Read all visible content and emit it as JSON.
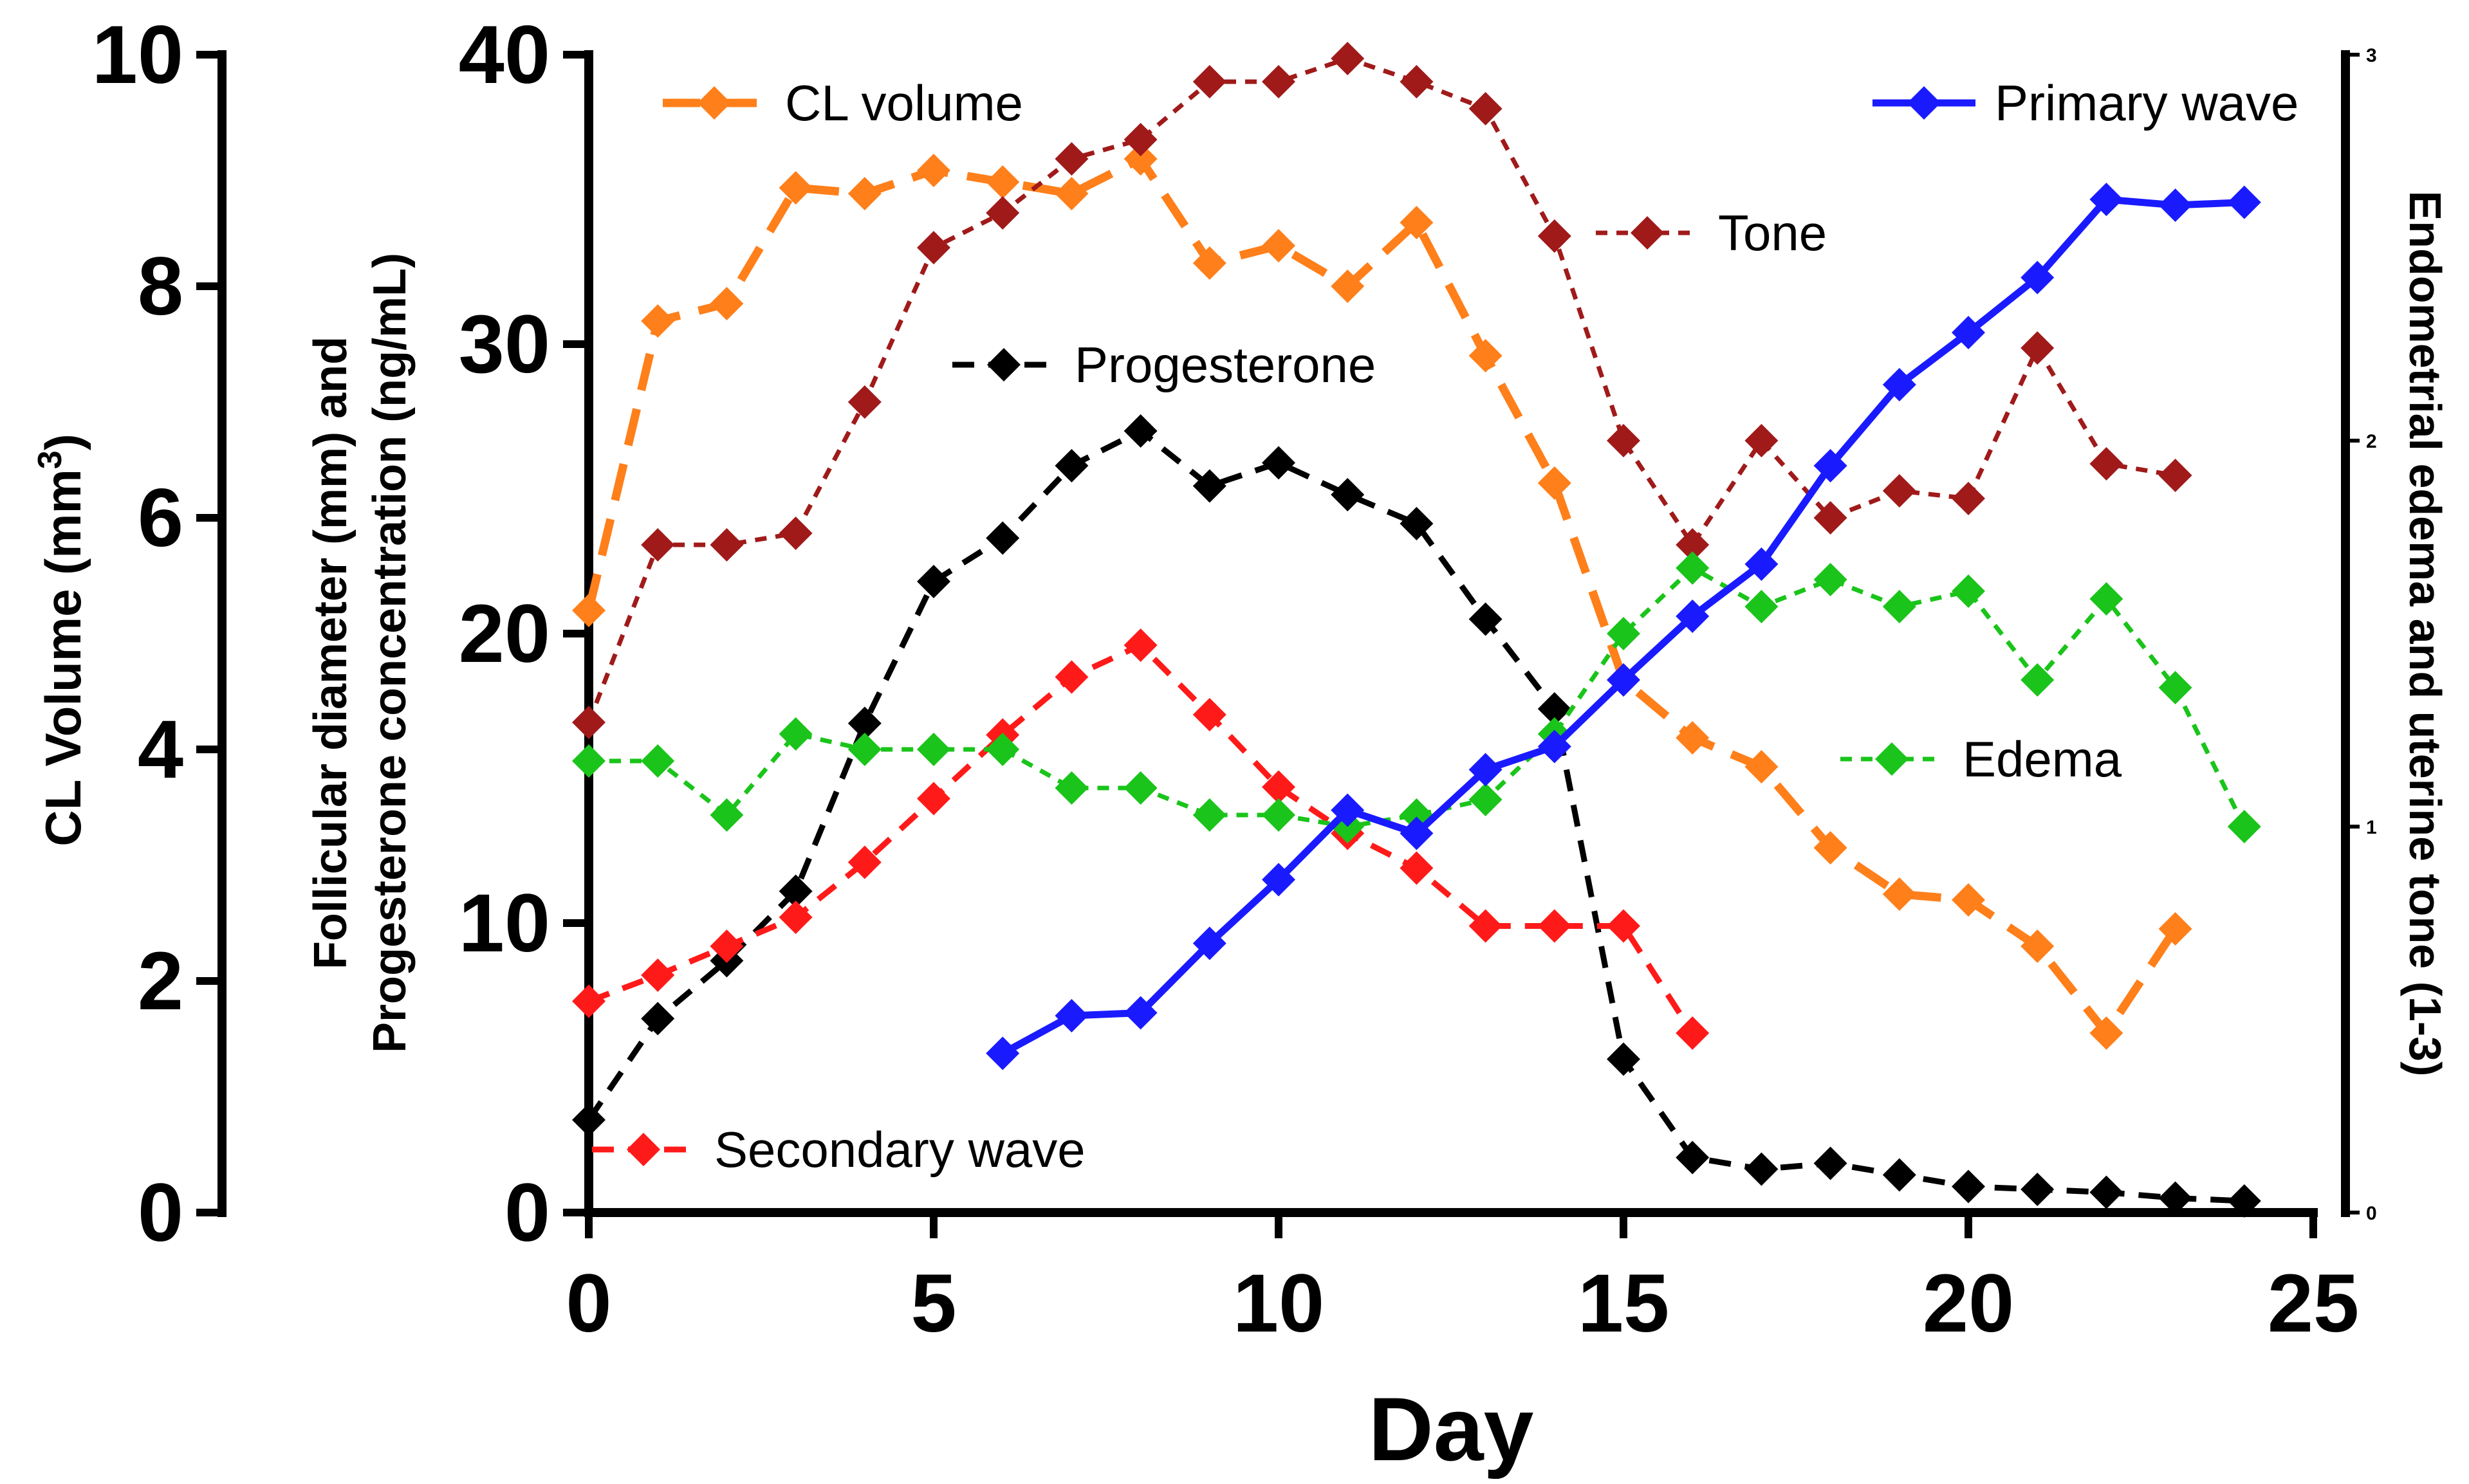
{
  "chart_data": {
    "type": "line",
    "x": [
      0,
      1,
      2,
      3,
      4,
      5,
      6,
      7,
      8,
      9,
      10,
      11,
      12,
      13,
      14,
      15,
      16,
      17,
      18,
      19,
      20,
      21,
      22,
      23,
      24
    ],
    "xlabel": "Day",
    "xlim": [
      0,
      25
    ],
    "xticks": [
      0,
      5,
      10,
      15,
      20,
      25
    ],
    "left_outer_axis": {
      "label_main": "CL Volume (mm",
      "label_sup": "3",
      "label_close": ")",
      "range": [
        0,
        10
      ],
      "ticks": [
        0,
        2,
        4,
        6,
        8,
        10
      ]
    },
    "left_inner_axis": {
      "label_line1": "Follicular diameter (mm) and",
      "label_line2": "Progesterone concentration (ng/mL)",
      "range": [
        0,
        40
      ],
      "ticks": [
        0,
        10,
        20,
        30,
        40
      ]
    },
    "right_axis": {
      "label": "Endometrial edema and uterine tone (1-3)",
      "range": [
        0,
        3
      ],
      "ticks": [
        0,
        1,
        2,
        3
      ]
    },
    "series": [
      {
        "name": "CL volume",
        "axis": "left_outer",
        "color": "#ff7f1a",
        "dash": "long",
        "x": [
          0,
          1,
          2,
          3,
          4,
          5,
          6,
          7,
          8,
          9,
          10,
          11,
          12,
          13,
          14,
          15,
          16,
          17,
          18,
          19,
          20,
          21,
          22,
          23
        ],
        "values": [
          5.2,
          7.7,
          7.85,
          8.85,
          8.8,
          9.0,
          8.9,
          8.8,
          9.1,
          8.2,
          8.35,
          8.0,
          8.55,
          7.4,
          6.3,
          4.6,
          4.1,
          3.85,
          3.15,
          2.75,
          2.7,
          2.3,
          1.55,
          2.45
        ]
      },
      {
        "name": "Tone",
        "axis": "right",
        "color": "#a01a1a",
        "dash": "short",
        "x": [
          0,
          1,
          2,
          3,
          4,
          5,
          6,
          7,
          8,
          9,
          10,
          11,
          12,
          13,
          14,
          15,
          16,
          17,
          18,
          19,
          20,
          21,
          22,
          23
        ],
        "values": [
          1.27,
          1.73,
          1.73,
          1.76,
          2.1,
          2.5,
          2.59,
          2.73,
          2.78,
          2.93,
          2.93,
          2.99,
          2.93,
          2.86,
          2.53,
          2.0,
          1.73,
          2.0,
          1.8,
          1.87,
          1.85,
          2.24,
          1.94,
          1.91
        ]
      },
      {
        "name": "Progesterone",
        "axis": "left_inner",
        "color": "#000000",
        "dash": "medium",
        "x": [
          0,
          1,
          2,
          3,
          4,
          5,
          6,
          7,
          8,
          9,
          10,
          11,
          12,
          13,
          14,
          15,
          16,
          17,
          18,
          19,
          20,
          21,
          22,
          23,
          24
        ],
        "values": [
          3.2,
          6.7,
          8.7,
          11.1,
          16.9,
          21.8,
          23.3,
          25.8,
          27.0,
          25.1,
          25.9,
          24.8,
          23.8,
          20.5,
          17.4,
          5.3,
          1.9,
          1.5,
          1.7,
          1.3,
          0.9,
          0.8,
          0.7,
          0.5,
          0.4
        ]
      },
      {
        "name": "Secondary wave",
        "axis": "left_inner",
        "color": "#ff1a1a",
        "dash": "medium",
        "x": [
          0,
          1,
          2,
          3,
          4,
          5,
          6,
          7,
          8,
          9,
          10,
          11,
          12,
          13,
          14,
          15,
          16
        ],
        "values": [
          7.3,
          8.2,
          9.2,
          10.2,
          12.1,
          14.3,
          16.5,
          18.5,
          19.6,
          17.2,
          14.7,
          13.1,
          11.9,
          9.9,
          9.9,
          9.9,
          6.2
        ]
      },
      {
        "name": "Edema",
        "axis": "right",
        "color": "#1ac41a",
        "dash": "short",
        "x": [
          0,
          1,
          2,
          3,
          4,
          5,
          6,
          7,
          8,
          9,
          10,
          11,
          12,
          13,
          14,
          15,
          16,
          17,
          18,
          19,
          20,
          21,
          22,
          23,
          24
        ],
        "values": [
          1.17,
          1.17,
          1.03,
          1.24,
          1.2,
          1.2,
          1.2,
          1.1,
          1.1,
          1.03,
          1.03,
          1.0,
          1.03,
          1.07,
          1.24,
          1.5,
          1.67,
          1.57,
          1.64,
          1.57,
          1.61,
          1.38,
          1.59,
          1.36,
          1.0
        ]
      },
      {
        "name": "Primary wave",
        "axis": "left_inner",
        "color": "#1a1aff",
        "dash": "solid",
        "x": [
          6,
          7,
          8,
          9,
          10,
          11,
          12,
          13,
          14,
          15,
          16,
          17,
          18,
          19,
          20,
          21,
          22,
          23,
          24
        ],
        "values": [
          5.5,
          6.8,
          6.9,
          9.3,
          11.5,
          13.9,
          13.1,
          15.3,
          16.1,
          18.4,
          20.6,
          22.4,
          25.8,
          28.6,
          30.4,
          32.3,
          35.0,
          34.8,
          34.9
        ]
      }
    ],
    "legend_entries": [
      "CL volume",
      "Primary wave",
      "Tone",
      "Progesterone",
      "Edema",
      "Secondary wave"
    ]
  }
}
